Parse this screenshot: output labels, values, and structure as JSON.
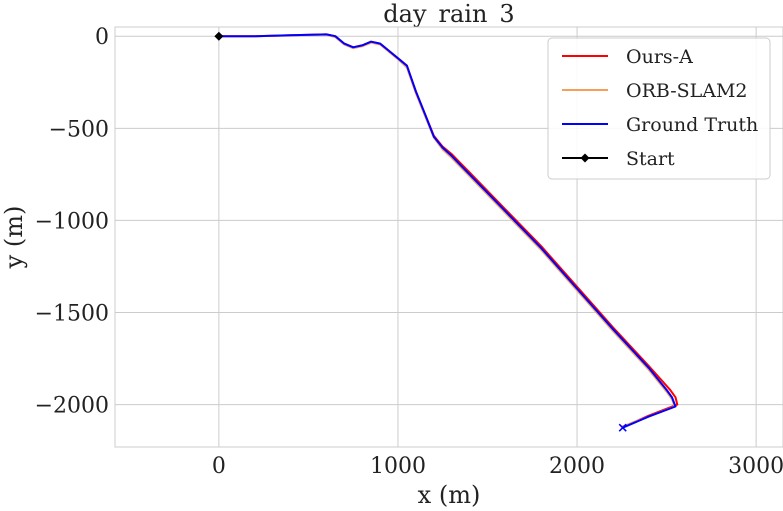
{
  "chart_data": {
    "type": "line",
    "title": "day_rain_3",
    "xlabel": "x (m)",
    "ylabel": "y (m)",
    "xlim": [
      -580,
      3150
    ],
    "ylim": [
      -2230,
      50
    ],
    "xticks": [
      0,
      1000,
      2000,
      3000
    ],
    "xtick_labels": [
      "0",
      "1000",
      "2000",
      "3000"
    ],
    "yticks": [
      0,
      -500,
      -1000,
      -1500,
      -2000
    ],
    "ytick_labels": [
      "0",
      "−500",
      "−1000",
      "−1500",
      "−2000"
    ],
    "grid": true,
    "legend_position": "top-right",
    "series": [
      {
        "name": "Ours-A",
        "color": "#ff0000",
        "x": [
          0,
          200,
          400,
          600,
          650,
          700,
          750,
          800,
          850,
          900,
          950,
          1000,
          1050,
          1100,
          1150,
          1200,
          1250,
          1300,
          1350,
          1400,
          1600,
          1800,
          2000,
          2200,
          2400,
          2520,
          2550,
          2560,
          2400,
          2260
        ],
        "y": [
          0,
          0,
          5,
          10,
          0,
          -40,
          -60,
          -50,
          -30,
          -40,
          -80,
          -120,
          -160,
          -300,
          -420,
          -540,
          -600,
          -640,
          -690,
          -740,
          -940,
          -1140,
          -1360,
          -1580,
          -1790,
          -1920,
          -1960,
          -2000,
          -2060,
          -2120
        ]
      },
      {
        "name": "ORB-SLAM2",
        "color": "#f5a05a",
        "x": [
          0,
          200,
          400,
          600,
          650,
          700,
          750,
          800,
          850,
          900,
          950,
          1000,
          1050,
          1100,
          1150,
          1200,
          1250,
          1300,
          1350,
          1400,
          1600,
          1800,
          2000,
          2200,
          2400,
          2500,
          2530,
          2545,
          2400,
          2250
        ],
        "y": [
          0,
          0,
          4,
          8,
          -5,
          -45,
          -65,
          -55,
          -35,
          -45,
          -85,
          -125,
          -170,
          -310,
          -430,
          -550,
          -615,
          -660,
          -710,
          -760,
          -960,
          -1160,
          -1380,
          -1600,
          -1810,
          -1930,
          -1970,
          -2010,
          -2065,
          -2120
        ]
      },
      {
        "name": "Ground Truth",
        "color": "#0000ff",
        "x": [
          0,
          200,
          400,
          600,
          650,
          700,
          750,
          800,
          850,
          900,
          950,
          1000,
          1050,
          1100,
          1150,
          1200,
          1250,
          1300,
          1350,
          1400,
          1600,
          1800,
          2000,
          2200,
          2400,
          2500,
          2530,
          2550,
          2400,
          2255
        ],
        "y": [
          0,
          0,
          5,
          10,
          0,
          -40,
          -60,
          -50,
          -30,
          -40,
          -80,
          -120,
          -160,
          -300,
          -420,
          -545,
          -605,
          -650,
          -700,
          -750,
          -950,
          -1150,
          -1370,
          -1590,
          -1800,
          -1920,
          -1960,
          -2010,
          -2065,
          -2125
        ]
      }
    ],
    "start_marker": {
      "name": "Start",
      "color": "#000000",
      "x": 0,
      "y": 0
    },
    "end_marker": {
      "color": "#0000ff",
      "x": 2255,
      "y": -2125
    }
  }
}
